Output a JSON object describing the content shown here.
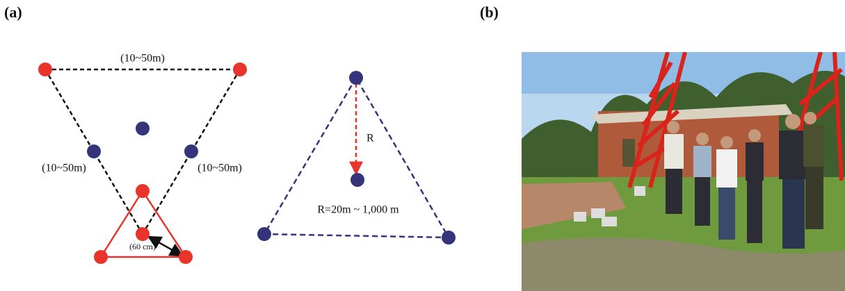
{
  "panels": [
    {
      "label": "(a)",
      "distances": [
        "(10~50m)",
        "(10~50m)",
        "(10~50m)"
      ],
      "inner_spacing": "(60 cm)",
      "radius_label": "R",
      "radius_range": "R=20m ~ 1,000 m"
    },
    {
      "label": "(b)"
    }
  ]
}
